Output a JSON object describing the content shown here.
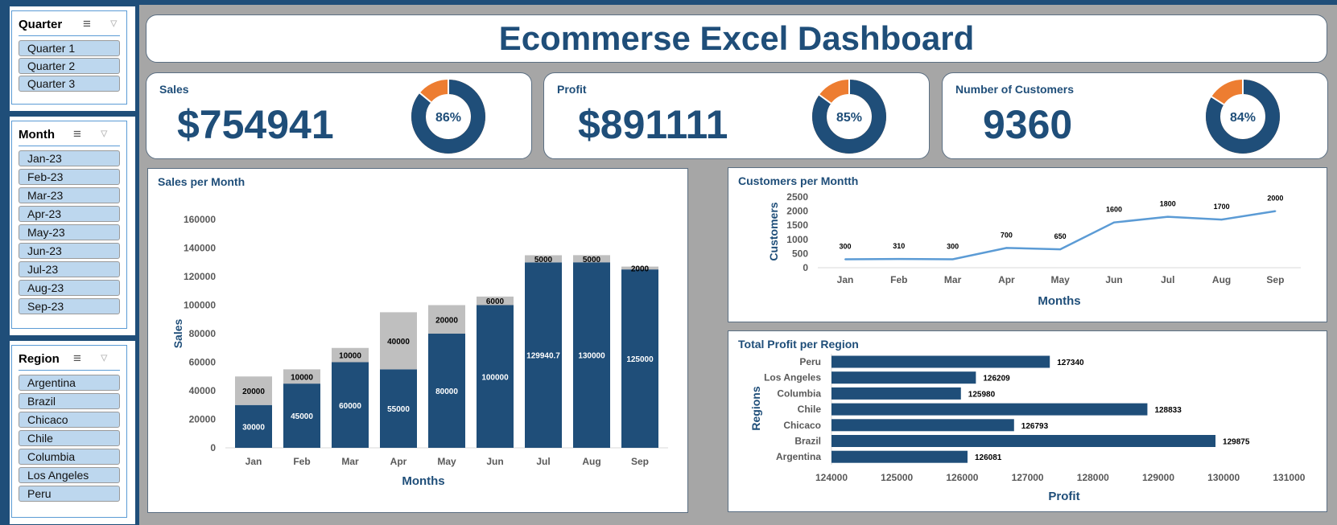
{
  "title": "Ecommerse Excel Dashboard",
  "slicers": {
    "quarter": {
      "header": "Quarter",
      "items": [
        "Quarter 1",
        "Quarter 2",
        "Quarter 3"
      ]
    },
    "month": {
      "header": "Month",
      "items": [
        "Jan-23",
        "Feb-23",
        "Mar-23",
        "Apr-23",
        "May-23",
        "Jun-23",
        "Jul-23",
        "Aug-23",
        "Sep-23"
      ]
    },
    "region": {
      "header": "Region",
      "items": [
        "Argentina",
        "Brazil",
        "Chicaco",
        "Chile",
        "Columbia",
        "Los Angeles",
        "Peru"
      ]
    },
    "icons": {
      "multi_select": "multi-select-icon",
      "clear_filter": "clear-filter-icon"
    }
  },
  "kpis": [
    {
      "label": "Sales",
      "value": "$754941",
      "percent": 86,
      "percent_label": "86%"
    },
    {
      "label": "Profit",
      "value": "$891111",
      "percent": 85,
      "percent_label": "85%"
    },
    {
      "label": "Number of Customers",
      "value": "9360",
      "percent": 84,
      "percent_label": "84%"
    }
  ],
  "colors": {
    "primary": "#1f4e79",
    "secondary": "#bfbfbf",
    "line": "#5b9bd5",
    "accent": "#ed7d31"
  },
  "chart_data": [
    {
      "type": "bar",
      "stacked": true,
      "title": "Sales per Month",
      "xlabel": "Months",
      "ylabel": "Sales",
      "categories": [
        "Jan",
        "Feb",
        "Mar",
        "Apr",
        "May",
        "Jun",
        "Jul",
        "Aug",
        "Sep"
      ],
      "series": [
        {
          "name": "base",
          "values": [
            30000,
            45000,
            60000,
            55000,
            80000,
            100000,
            129940.7,
            130000,
            125000
          ],
          "labels": [
            "30000",
            "45000",
            "60000",
            "55000",
            "80000",
            "100000",
            "129940.7",
            "130000",
            "125000"
          ]
        },
        {
          "name": "top",
          "values": [
            20000,
            10000,
            10000,
            40000,
            20000,
            6000,
            5000,
            5000,
            2000
          ],
          "labels": [
            "20000",
            "10000",
            "10000",
            "40000",
            "20000",
            "6000",
            "5000",
            "5000",
            "2000"
          ]
        }
      ],
      "ylim": [
        0,
        160000
      ],
      "yticks": [
        "0",
        "20000",
        "40000",
        "60000",
        "80000",
        "100000",
        "120000",
        "140000",
        "160000"
      ]
    },
    {
      "type": "line",
      "title": "Customers per Montth",
      "xlabel": "Months",
      "ylabel": "Customers",
      "categories": [
        "Jan",
        "Feb",
        "Mar",
        "Apr",
        "May",
        "Jun",
        "Jul",
        "Aug",
        "Sep"
      ],
      "values": [
        300,
        310,
        300,
        700,
        650,
        1600,
        1800,
        1700,
        2000
      ],
      "labels": [
        "300",
        "310",
        "300",
        "700",
        "650",
        "1600",
        "1800",
        "1700",
        "2000"
      ],
      "ylim": [
        0,
        2500
      ],
      "yticks": [
        "0",
        "500",
        "1000",
        "1500",
        "2000",
        "2500"
      ]
    },
    {
      "type": "bar",
      "orientation": "horizontal",
      "title": "Total Profit per Region",
      "xlabel": "Profit",
      "ylabel": "Regions",
      "categories": [
        "Peru",
        "Los Angeles",
        "Columbia",
        "Chile",
        "Chicaco",
        "Brazil",
        "Argentina"
      ],
      "values": [
        127340,
        126209,
        125980,
        128833,
        126793,
        129875,
        126081
      ],
      "labels": [
        "127340",
        "126209",
        "125980",
        "128833",
        "126793",
        "129875",
        "126081"
      ],
      "xlim": [
        124000,
        131000
      ],
      "xticks": [
        "124000",
        "125000",
        "126000",
        "127000",
        "128000",
        "129000",
        "130000",
        "131000"
      ]
    }
  ]
}
